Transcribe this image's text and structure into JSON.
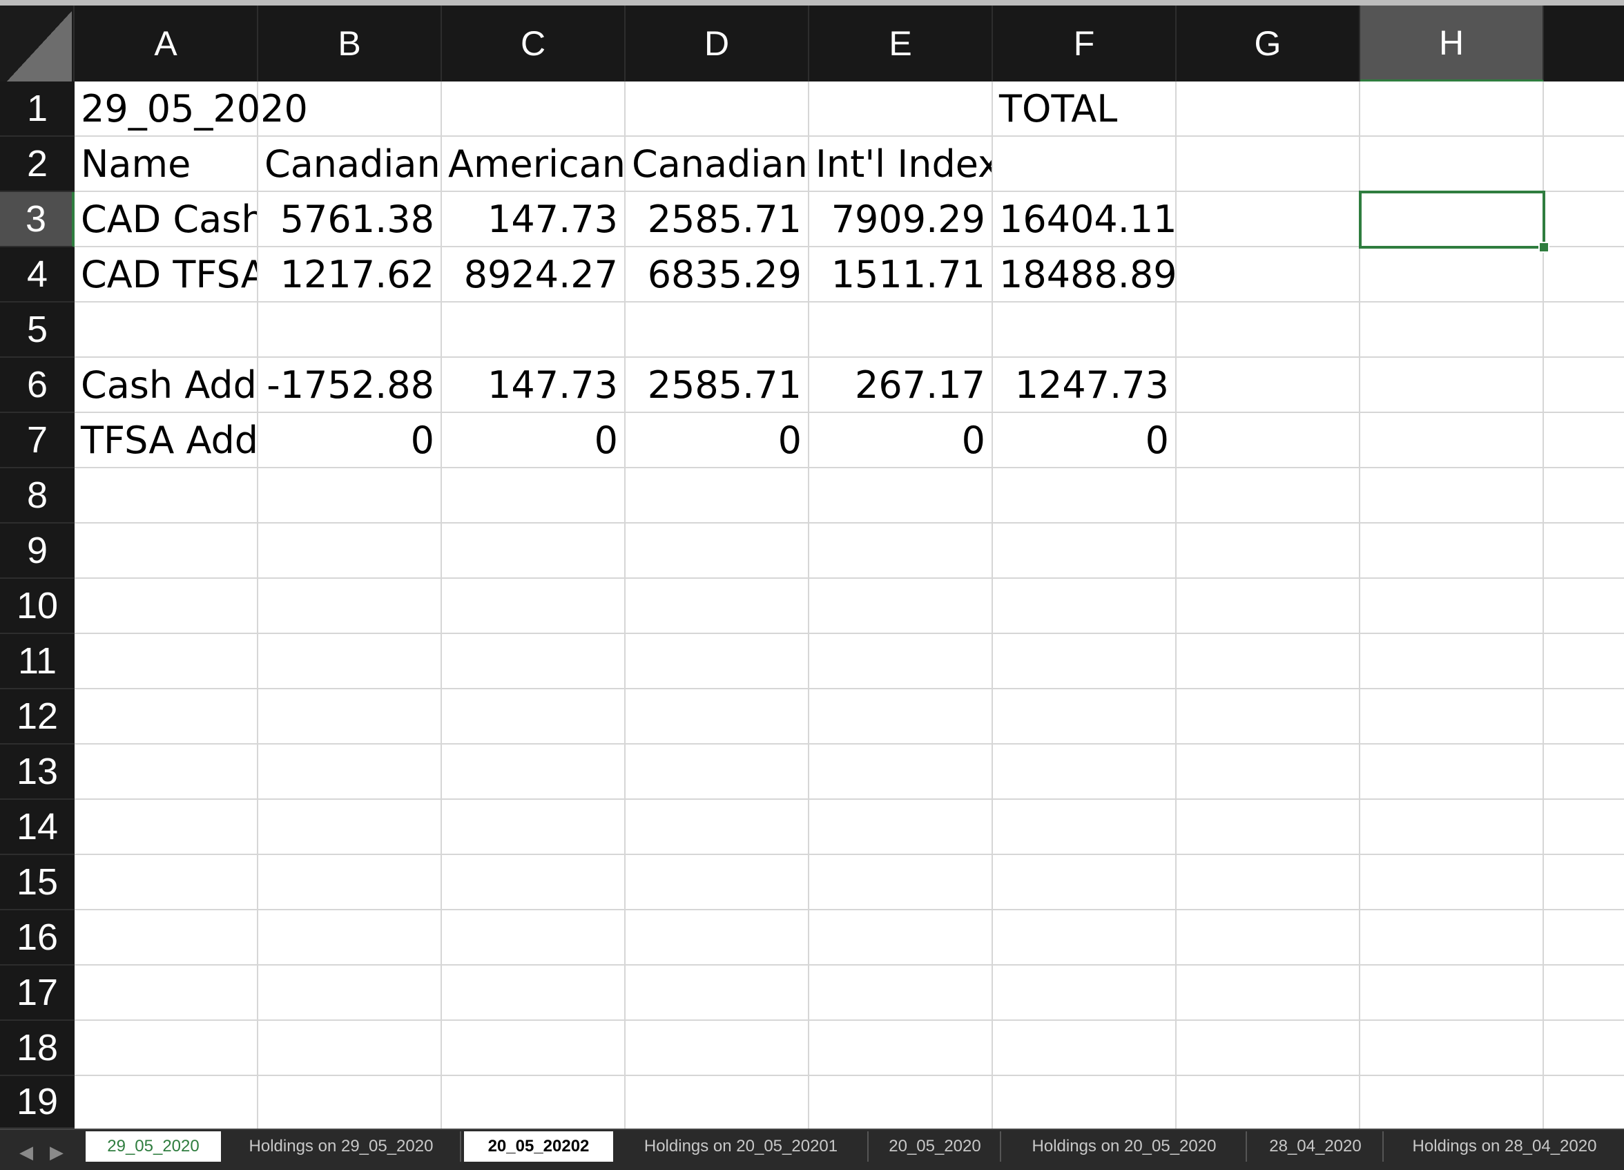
{
  "columns": [
    "A",
    "B",
    "C",
    "D",
    "E",
    "F",
    "G",
    "H"
  ],
  "active_column": "H",
  "rows": [
    "1",
    "2",
    "3",
    "4",
    "5",
    "6",
    "7",
    "8",
    "9",
    "10",
    "11",
    "12",
    "13",
    "14",
    "15",
    "16",
    "17",
    "18",
    "19"
  ],
  "active_row": "3",
  "cells": {
    "A1": "29_05_2020",
    "F1": "TOTAL",
    "A2": "Name",
    "B2": "Canadian I",
    "C2": "American I",
    "D2": "Canadian E",
    "E2": "Int'l Index",
    "A3": "CAD Cash",
    "B3": "5761.38",
    "C3": "147.73",
    "D3": "2585.71",
    "E3": "7909.29",
    "F3": "16404.11",
    "A4": "CAD TFSA",
    "B4": "1217.62",
    "C4": "8924.27",
    "D4": "6835.29",
    "E4": "1511.71",
    "F4": "18488.89",
    "A6": "Cash Adde",
    "B6": "-1752.88",
    "C6": "147.73",
    "D6": "2585.71",
    "E6": "267.17",
    "F6": "1247.73",
    "A7": "TFSA Adde",
    "B7": "0",
    "C7": "0",
    "D7": "0",
    "E7": "0",
    "F7": "0"
  },
  "selected_cell": "H3",
  "sheet_tabs": [
    {
      "label": "29_05_2020",
      "state": "active"
    },
    {
      "label": "Holdings on 29_05_2020",
      "state": "normal"
    },
    {
      "label": "20_05_20202",
      "state": "highlight"
    },
    {
      "label": "Holdings on 20_05_20201",
      "state": "normal"
    },
    {
      "label": "20_05_2020",
      "state": "normal"
    },
    {
      "label": "Holdings on 20_05_2020",
      "state": "normal"
    },
    {
      "label": "28_04_2020",
      "state": "normal"
    },
    {
      "label": "Holdings on 28_04_2020",
      "state": "normal"
    }
  ],
  "icons": {
    "prev_sheet": "chevron-left-icon",
    "next_sheet": "chevron-right-icon"
  },
  "colors": {
    "accent": "#2f7d3f",
    "header_bg": "#181818",
    "gridline": "#d6d6d6"
  }
}
